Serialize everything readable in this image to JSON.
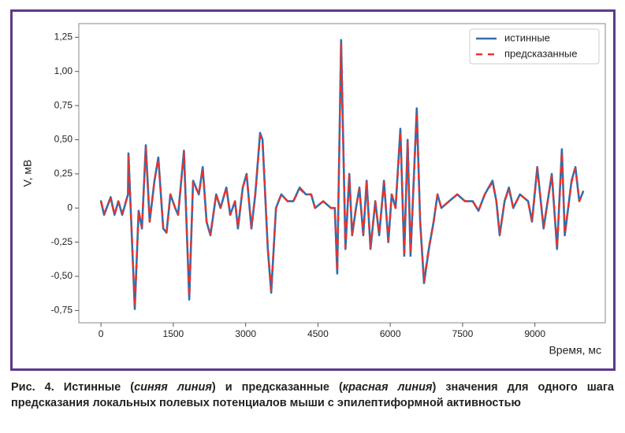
{
  "chart_data": {
    "type": "line",
    "x": [
      0,
      65,
      200,
      280,
      360,
      440,
      560,
      570,
      700,
      780,
      850,
      930,
      1010,
      1110,
      1190,
      1290,
      1360,
      1440,
      1540,
      1600,
      1720,
      1830,
      1910,
      2030,
      2110,
      2190,
      2270,
      2390,
      2480,
      2600,
      2680,
      2780,
      2840,
      2940,
      3020,
      3120,
      3200,
      3300,
      3350,
      3460,
      3530,
      3630,
      3740,
      3870,
      3990,
      4120,
      4250,
      4360,
      4440,
      4610,
      4770,
      4850,
      4900,
      4980,
      5070,
      5150,
      5210,
      5290,
      5360,
      5440,
      5510,
      5590,
      5690,
      5770,
      5870,
      5960,
      6030,
      6110,
      6210,
      6290,
      6360,
      6420,
      6550,
      6620,
      6700,
      6800,
      6900,
      6980,
      7060,
      7220,
      7390,
      7550,
      7710,
      7830,
      7960,
      8120,
      8200,
      8270,
      8370,
      8460,
      8550,
      8690,
      8860,
      8940,
      9050,
      9180,
      9350,
      9460,
      9560,
      9620,
      9760,
      9840,
      9920,
      10000
    ],
    "series": [
      {
        "name": "истинные",
        "color": "#2f6fb0",
        "values": [
          0.05,
          -0.05,
          0.08,
          -0.05,
          0.05,
          -0.05,
          0.1,
          0.4,
          -0.74,
          -0.02,
          -0.15,
          0.46,
          -0.1,
          0.2,
          0.37,
          -0.15,
          -0.18,
          0.1,
          0.0,
          -0.05,
          0.42,
          -0.67,
          0.2,
          0.1,
          0.3,
          -0.1,
          -0.2,
          0.1,
          0.0,
          0.15,
          -0.05,
          0.05,
          -0.15,
          0.15,
          0.25,
          -0.15,
          0.1,
          0.55,
          0.5,
          -0.3,
          -0.62,
          0.0,
          0.1,
          0.05,
          0.05,
          0.15,
          0.1,
          0.1,
          0.0,
          0.05,
          0.0,
          0.0,
          -0.48,
          1.23,
          -0.3,
          0.25,
          -0.2,
          0.0,
          0.15,
          -0.2,
          0.2,
          -0.3,
          0.05,
          -0.2,
          0.2,
          -0.25,
          0.1,
          0.0,
          0.58,
          -0.35,
          0.5,
          -0.35,
          0.73,
          -0.1,
          -0.55,
          -0.3,
          -0.1,
          0.1,
          0.0,
          0.05,
          0.1,
          0.05,
          0.05,
          -0.02,
          0.1,
          0.2,
          0.05,
          -0.2,
          0.05,
          0.15,
          0.0,
          0.1,
          0.05,
          -0.1,
          0.3,
          -0.15,
          0.25,
          -0.3,
          0.43,
          -0.2,
          0.2,
          0.3,
          0.05,
          0.12
        ]
      },
      {
        "name": "предсказанные",
        "color": "#e8332a",
        "values": [
          0.05,
          -0.04,
          0.07,
          -0.05,
          0.05,
          -0.04,
          0.1,
          0.38,
          -0.72,
          -0.02,
          -0.14,
          0.44,
          -0.1,
          0.2,
          0.36,
          -0.14,
          -0.18,
          0.1,
          0.0,
          -0.05,
          0.41,
          -0.65,
          0.19,
          0.1,
          0.29,
          -0.1,
          -0.19,
          0.1,
          0.0,
          0.15,
          -0.05,
          0.05,
          -0.14,
          0.15,
          0.24,
          -0.14,
          0.1,
          0.53,
          0.49,
          -0.29,
          -0.6,
          0.0,
          0.1,
          0.05,
          0.05,
          0.14,
          0.1,
          0.1,
          0.0,
          0.05,
          0.0,
          0.0,
          -0.46,
          1.2,
          -0.29,
          0.24,
          -0.19,
          0.0,
          0.14,
          -0.19,
          0.19,
          -0.29,
          0.05,
          -0.19,
          0.19,
          -0.24,
          0.1,
          0.0,
          0.56,
          -0.33,
          0.48,
          -0.33,
          0.7,
          -0.1,
          -0.53,
          -0.29,
          -0.1,
          0.1,
          0.0,
          0.05,
          0.1,
          0.05,
          0.05,
          -0.02,
          0.1,
          0.19,
          0.05,
          -0.19,
          0.05,
          0.14,
          0.0,
          0.1,
          0.05,
          -0.1,
          0.29,
          -0.14,
          0.24,
          -0.29,
          0.41,
          -0.19,
          0.19,
          0.29,
          0.05,
          0.12
        ]
      }
    ],
    "xlim": [
      -460,
      10460
    ],
    "xticks": [
      0,
      1500,
      3000,
      4500,
      6000,
      7500,
      9000
    ],
    "ylim": [
      -0.84,
      1.35
    ],
    "yticks": [
      {
        "value": -0.75,
        "label": "-0,75"
      },
      {
        "value": -0.5,
        "label": "-0,50"
      },
      {
        "value": -0.25,
        "label": "-0,25"
      },
      0,
      {
        "value": 0.25,
        "label": "0,25"
      },
      {
        "value": 0.5,
        "label": "0,50"
      },
      {
        "value": 0.75,
        "label": "0,75"
      },
      {
        "value": 1.0,
        "label": "1,00"
      },
      {
        "value": 1.25,
        "label": "1,25"
      }
    ],
    "xlabel": "Время, мс",
    "ylabel": "V, мВ",
    "legend": "upper right",
    "grid": false
  },
  "caption": [
    "Рис. 4. Истинные (",
    "синяя линия",
    ") и предсказанные (",
    "красная линия",
    ") значения для одного шага предсказания локальных полевых потенциалов мыши с эпилептиформной активностью"
  ]
}
